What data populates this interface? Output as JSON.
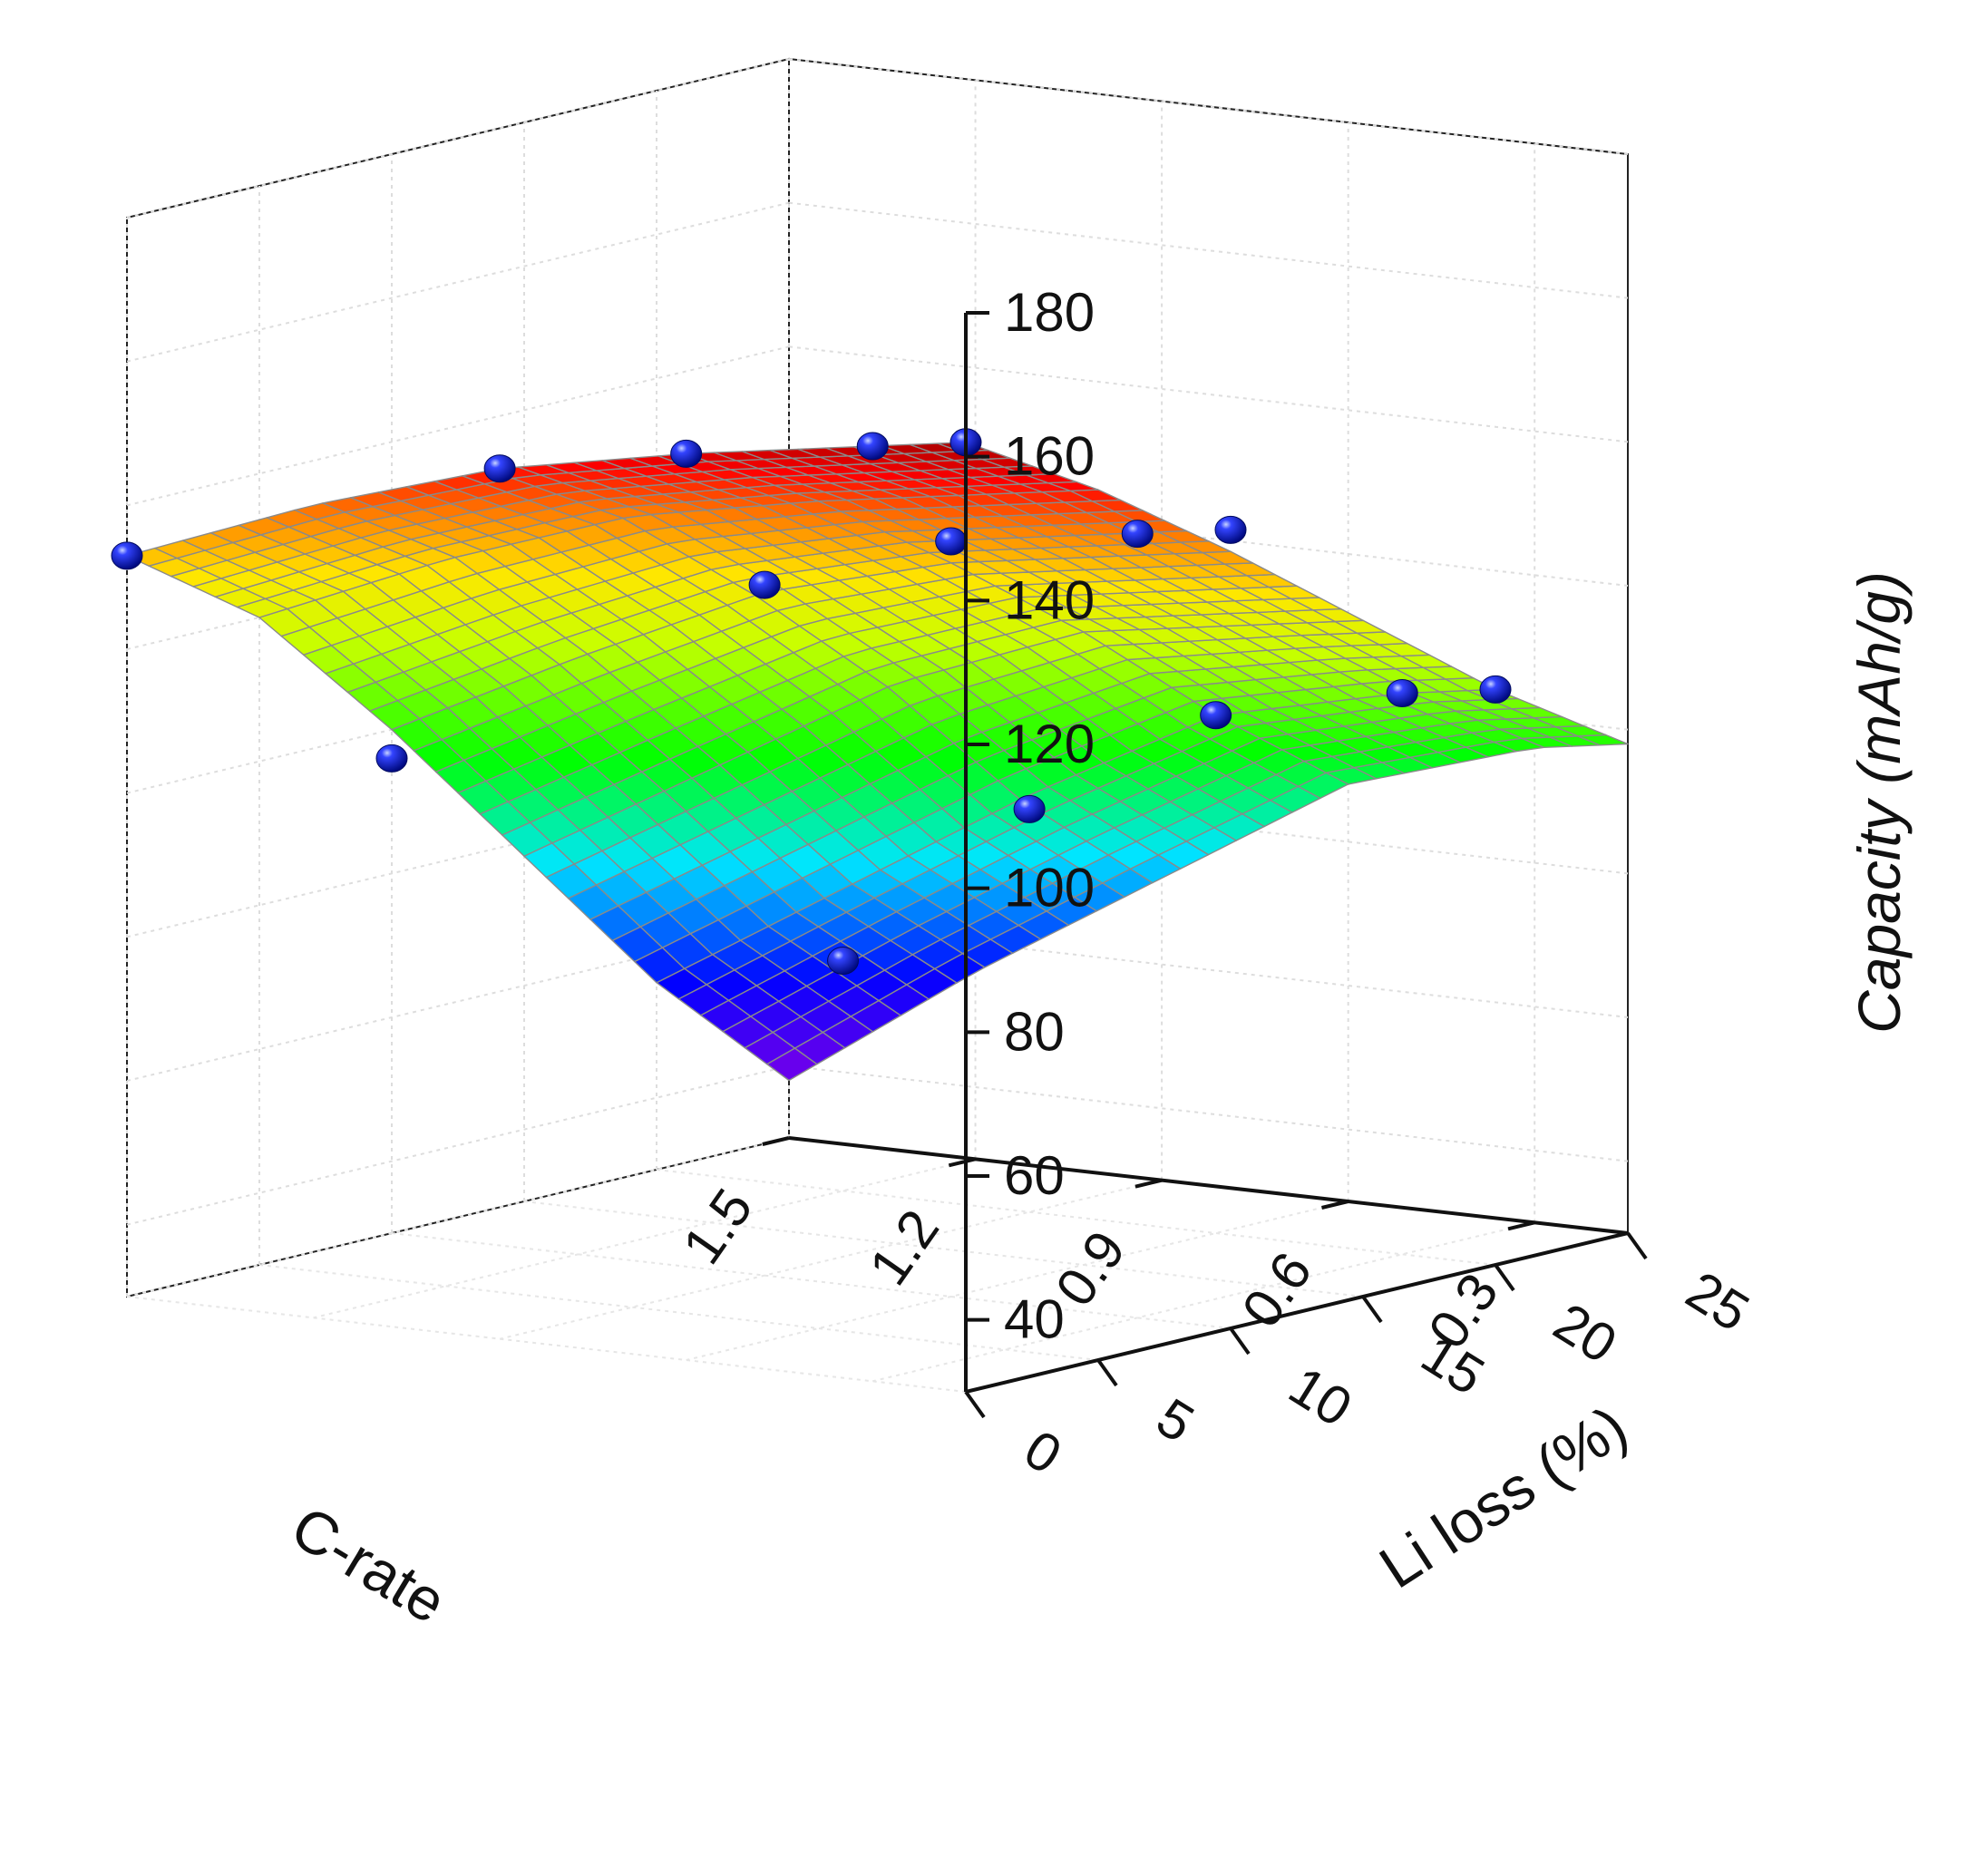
{
  "chart_data": {
    "type": "surface3d",
    "x_axis": {
      "title": "C-rate",
      "range": [
        0.15,
        1.5
      ],
      "ticks": [
        0.3,
        0.6,
        0.9,
        1.2,
        1.5
      ],
      "tick_labels": [
        "0.3",
        "0.6",
        "0.9",
        "1.2",
        "1.5"
      ]
    },
    "y_axis": {
      "title": "Li loss (%)",
      "range": [
        0,
        25
      ],
      "ticks": [
        0,
        5,
        10,
        15,
        20,
        25
      ],
      "tick_labels": [
        "0",
        "5",
        "10",
        "15",
        "20",
        "25"
      ]
    },
    "z_axis": {
      "title": "Capacity (mAh/g)",
      "range": [
        30,
        180
      ],
      "ticks": [
        40,
        60,
        80,
        100,
        120,
        140,
        160,
        180
      ],
      "tick_labels": [
        "40",
        "60",
        "80",
        "100",
        "120",
        "140",
        "160",
        "180"
      ]
    },
    "surface": {
      "colormap": "rainbow",
      "mesh_color": "#8a8a8a",
      "x_nodes": [
        0.15,
        0.3,
        0.6,
        0.9,
        1.2,
        1.5
      ],
      "y_nodes": [
        0,
        5,
        10,
        15,
        20,
        25
      ],
      "z_grid": [
        [
          162,
          151,
          138,
          124,
          110,
          98
        ],
        [
          160,
          149,
          136,
          122,
          108,
          96
        ],
        [
          156,
          145,
          132,
          118,
          102,
          88
        ],
        [
          151,
          140,
          125,
          108,
          88,
          72
        ],
        [
          143,
          131,
          113,
          93,
          72,
          56
        ],
        [
          133,
          120,
          100,
          78,
          56,
          38
        ]
      ]
    },
    "points": [
      {
        "x": 0.15,
        "y": 0,
        "z": 162
      },
      {
        "x": 0.3,
        "y": 0,
        "z": 160
      },
      {
        "x": 0.6,
        "y": 0,
        "z": 156
      },
      {
        "x": 0.9,
        "y": 0,
        "z": 151
      },
      {
        "x": 1.5,
        "y": 0,
        "z": 133
      },
      {
        "x": 0.15,
        "y": 10,
        "z": 141
      },
      {
        "x": 0.3,
        "y": 10,
        "z": 139
      },
      {
        "x": 0.6,
        "y": 10,
        "z": 135
      },
      {
        "x": 0.9,
        "y": 10,
        "z": 126
      },
      {
        "x": 0.15,
        "y": 20,
        "z": 110
      },
      {
        "x": 0.3,
        "y": 20,
        "z": 108
      },
      {
        "x": 0.6,
        "y": 20,
        "z": 102
      },
      {
        "x": 0.9,
        "y": 20,
        "z": 86
      },
      {
        "x": 1.5,
        "y": 10,
        "z": 96
      },
      {
        "x": 1.2,
        "y": 20,
        "z": 62
      }
    ],
    "point_color": "#1a1aff",
    "grid": true
  }
}
